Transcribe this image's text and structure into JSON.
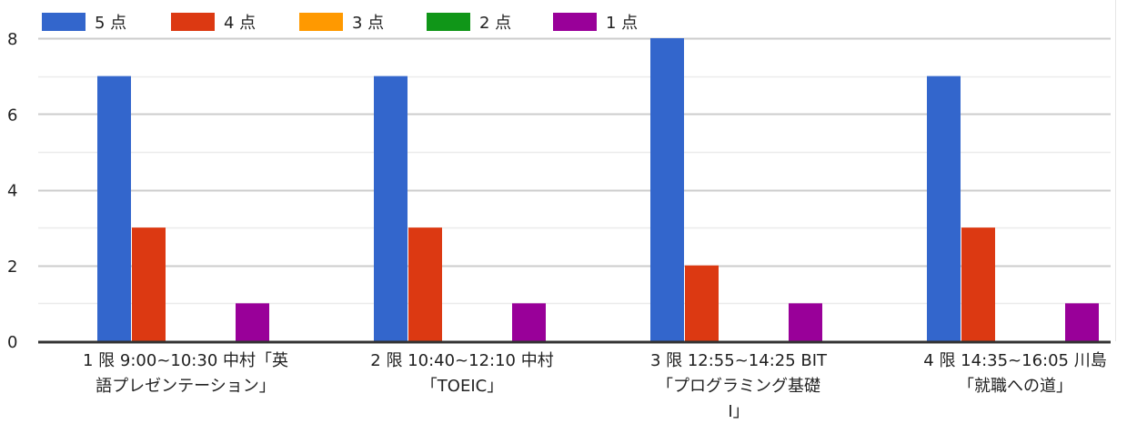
{
  "chart_data": {
    "type": "bar",
    "categories": [
      [
        "1 限 9:00~10:30 中村「英",
        "語プレゼンテーション」"
      ],
      [
        "2 限 10:40~12:10 中村",
        "「TOEIC」"
      ],
      [
        "3 限 12:55~14:25 BIT",
        "「プログラミング基礎",
        "Ⅰ」"
      ],
      [
        "4 限 14:35~16:05 川島",
        "「就職への道」"
      ]
    ],
    "series": [
      {
        "name": "5 点",
        "color": "#3366cc",
        "values": [
          7,
          7,
          8,
          7
        ]
      },
      {
        "name": "4 点",
        "color": "#dc3912",
        "values": [
          3,
          3,
          2,
          3
        ]
      },
      {
        "name": "3 点",
        "color": "#ff9900",
        "values": [
          0,
          0,
          0,
          0
        ]
      },
      {
        "name": "2 点",
        "color": "#109618",
        "values": [
          0,
          0,
          0,
          0
        ]
      },
      {
        "name": "1 点",
        "color": "#990099",
        "values": [
          1,
          1,
          1,
          1
        ]
      }
    ],
    "y_ticks": [
      "0",
      "2",
      "4",
      "6",
      "8"
    ],
    "ylim": [
      0,
      8
    ],
    "grid": true,
    "legend_position": "top-left"
  }
}
